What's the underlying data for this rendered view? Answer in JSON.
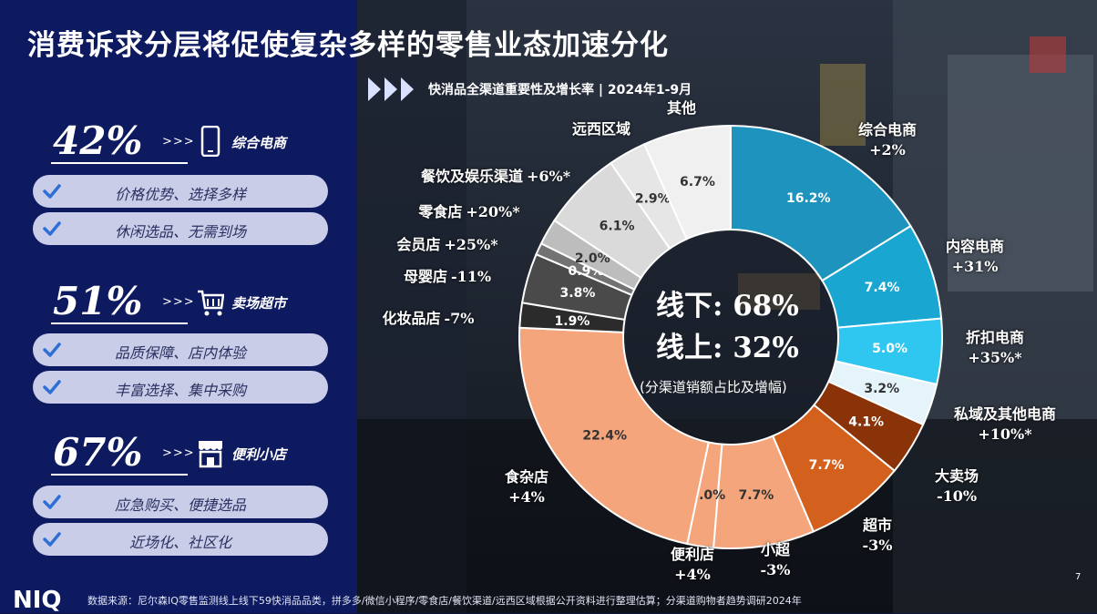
{
  "header": {
    "title": "消费诉求分层将促使复杂多样的零售业态加速分化",
    "subtitle": "快消品全渠道重要性及增长率 | 2024年1-9月"
  },
  "stats": [
    {
      "pct": "42%",
      "arrows": ">>>",
      "icon": "smartphone-icon",
      "label": "综合电商",
      "points": [
        "价格优势、选择多样",
        "休闲选品、无需到场"
      ]
    },
    {
      "pct": "51%",
      "arrows": ">>>",
      "icon": "shopping-cart-icon",
      "label": "卖场超市",
      "points": [
        "品质保障、店内体验",
        "丰富选择、集中采购"
      ]
    },
    {
      "pct": "67%",
      "arrows": ">>>",
      "icon": "storefront-icon",
      "label": "便利小店",
      "points": [
        "应急购买、便捷选品",
        "近场化、社区化"
      ]
    }
  ],
  "center": {
    "line1": "线下: 68%",
    "line2": "线上: 32%",
    "note": "(分渠道销额占比及增幅)"
  },
  "chart_data": {
    "type": "pie",
    "style": "donut",
    "start": "top, clockwise",
    "slices": [
      {
        "name": "综合电商",
        "growth": "+2%",
        "value": 16.2,
        "label": "16.2%",
        "color": "#1e93bd"
      },
      {
        "name": "内容电商",
        "growth": "+31%",
        "value": 7.4,
        "label": "7.4%",
        "color": "#19a7d2"
      },
      {
        "name": "折扣电商",
        "growth": "+35%*",
        "value": 5.0,
        "label": "5.0%",
        "color": "#2fc6ef"
      },
      {
        "name": "私域及其他电商",
        "growth": "+10%*",
        "value": 3.2,
        "label": "3.2%",
        "color": "#e4f4fa"
      },
      {
        "name": "大卖场",
        "growth": "-10%",
        "value": 4.1,
        "label": "4.1%",
        "color": "#8a3208"
      },
      {
        "name": "超市",
        "growth": "-3%",
        "value": 7.7,
        "label": "7.7%",
        "color": "#d4601e"
      },
      {
        "name": "小超",
        "growth": "-3%",
        "value": 7.7,
        "label": "7.7%",
        "color": "#f4a57b"
      },
      {
        "name": "便利店",
        "growth": "+4%",
        "value": 2.0,
        "label": "2.0%",
        "color": "#f4a57b"
      },
      {
        "name": "食杂店",
        "growth": "+4%",
        "value": 22.4,
        "label": "22.4%",
        "color": "#f4a57b"
      },
      {
        "name": "化妆品店",
        "growth": "-7%",
        "value": 1.9,
        "label": "1.9%",
        "color": "#2b2b2b"
      },
      {
        "name": "母婴店",
        "growth": "-11%",
        "value": 3.8,
        "label": "3.8%",
        "color": "#4a4a4a"
      },
      {
        "name": "会员店",
        "growth": "+25%*",
        "value": 0.9,
        "label": "0.9%",
        "color": "#737373"
      },
      {
        "name": "零食店",
        "growth": "+20%*",
        "value": 2.0,
        "label": "2.0%",
        "color": "#bdbdbd"
      },
      {
        "name": "餐饮及娱乐渠道",
        "growth": "+6%*",
        "value": 6.1,
        "label": "6.1%",
        "color": "#dadada"
      },
      {
        "name": "远西区域",
        "growth": "",
        "value": 2.9,
        "label": "2.9%",
        "color": "#e6e6e6"
      },
      {
        "name": "其他",
        "growth": "",
        "value": 6.7,
        "label": "6.7%",
        "color": "#f0f0f0"
      }
    ]
  },
  "footer": {
    "logo": "NIQ",
    "source": "数据来源：尼尔森IQ零售监测线上线下59快消品品类，拼多多/微信小程序/零食店/餐饮渠道/远西区域根据公开资料进行整理估算；分渠道购物者趋势调研2024年",
    "page": "7"
  }
}
